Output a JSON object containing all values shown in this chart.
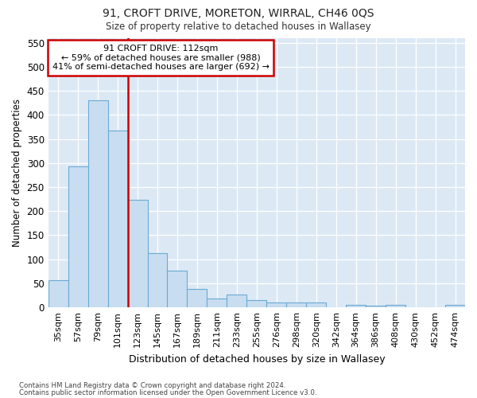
{
  "title1": "91, CROFT DRIVE, MORETON, WIRRAL, CH46 0QS",
  "title2": "Size of property relative to detached houses in Wallasey",
  "xlabel": "Distribution of detached houses by size in Wallasey",
  "ylabel": "Number of detached properties",
  "categories": [
    "35sqm",
    "57sqm",
    "79sqm",
    "101sqm",
    "123sqm",
    "145sqm",
    "167sqm",
    "189sqm",
    "211sqm",
    "233sqm",
    "255sqm",
    "276sqm",
    "298sqm",
    "320sqm",
    "342sqm",
    "364sqm",
    "386sqm",
    "408sqm",
    "430sqm",
    "452sqm",
    "474sqm"
  ],
  "values": [
    56,
    293,
    430,
    368,
    224,
    113,
    76,
    38,
    18,
    27,
    16,
    10,
    10,
    10,
    0,
    5,
    4,
    6,
    0,
    0,
    5
  ],
  "bar_color": "#c9ddf0",
  "bar_edge_color": "#6aaad4",
  "red_line_color": "#cc0000",
  "annotation_text": "91 CROFT DRIVE: 112sqm\n← 59% of detached houses are smaller (988)\n41% of semi-detached houses are larger (692) →",
  "annotation_box_facecolor": "#ffffff",
  "annotation_box_edgecolor": "#cc0000",
  "ylim": [
    0,
    560
  ],
  "yticks": [
    0,
    50,
    100,
    150,
    200,
    250,
    300,
    350,
    400,
    450,
    500,
    550
  ],
  "footer1": "Contains HM Land Registry data © Crown copyright and database right 2024.",
  "footer2": "Contains public sector information licensed under the Open Government Licence v3.0.",
  "fig_bg_color": "#ffffff",
  "plot_bg_color": "#dce9f5"
}
